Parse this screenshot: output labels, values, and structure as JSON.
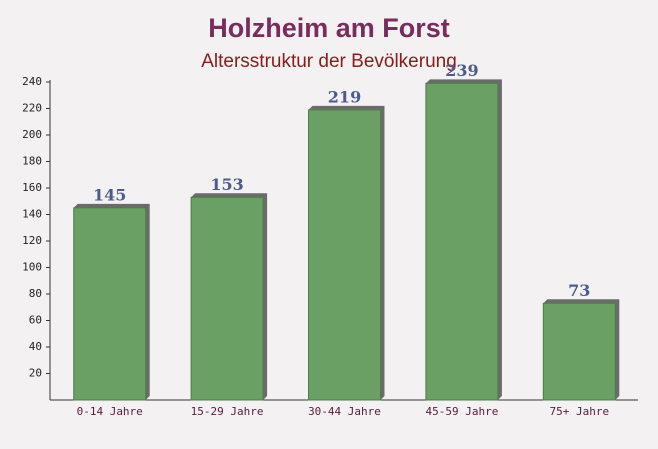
{
  "chart_data": {
    "type": "bar",
    "title": "Holzheim am Forst",
    "subtitle": "Altersstruktur der Bevölkerung",
    "categories": [
      "0-14 Jahre",
      "15-29 Jahre",
      "30-44 Jahre",
      "45-59 Jahre",
      "75+ Jahre"
    ],
    "values": [
      145,
      153,
      219,
      239,
      73
    ],
    "color": "#6aa063",
    "ylim": [
      0,
      240
    ],
    "yticks": [
      20,
      40,
      60,
      80,
      100,
      120,
      140,
      160,
      180,
      200,
      220,
      240
    ],
    "grid": false
  }
}
